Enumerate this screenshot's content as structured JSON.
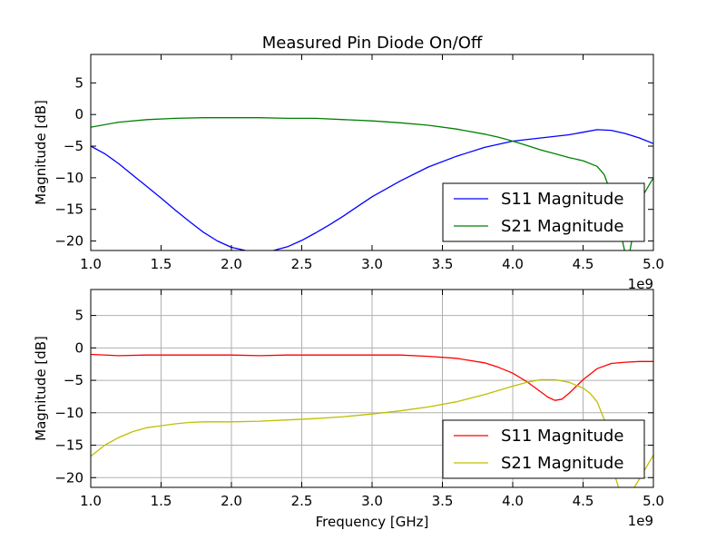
{
  "chart_data": [
    {
      "type": "line",
      "title": "Measured Pin Diode On/Off",
      "xlabel": "",
      "ylabel": "Magnitude [dB]",
      "x_offset_label": "1e9",
      "xlim": [
        1.0,
        5.0
      ],
      "ylim": [
        -21.5,
        9.5
      ],
      "xticks": [
        "1.0",
        "1.5",
        "2.0",
        "2.5",
        "3.0",
        "3.5",
        "4.0",
        "4.5",
        "5.0"
      ],
      "yticks": [
        "5",
        "0",
        "−5",
        "−10",
        "−15",
        "−20"
      ],
      "grid": false,
      "legend_position": "lower right",
      "series": [
        {
          "name": "S11 Magnitude",
          "color": "#0000ff",
          "x": [
            1.0,
            1.1,
            1.2,
            1.3,
            1.4,
            1.5,
            1.6,
            1.7,
            1.8,
            1.9,
            2.0,
            2.1,
            2.2,
            2.3,
            2.4,
            2.5,
            2.6,
            2.7,
            2.8,
            2.9,
            3.0,
            3.2,
            3.4,
            3.6,
            3.8,
            4.0,
            4.2,
            4.4,
            4.5,
            4.6,
            4.7,
            4.8,
            4.9,
            5.0
          ],
          "y": [
            -5.0,
            -6.2,
            -7.8,
            -9.6,
            -11.4,
            -13.2,
            -15.1,
            -16.9,
            -18.6,
            -20.0,
            -21.0,
            -21.5,
            -21.7,
            -21.5,
            -20.9,
            -19.9,
            -18.7,
            -17.4,
            -16.0,
            -14.5,
            -13.0,
            -10.5,
            -8.3,
            -6.6,
            -5.2,
            -4.2,
            -3.7,
            -3.2,
            -2.8,
            -2.4,
            -2.5,
            -3.0,
            -3.7,
            -4.6
          ]
        },
        {
          "name": "S21 Magnitude",
          "color": "#008000",
          "x": [
            1.0,
            1.2,
            1.4,
            1.6,
            1.8,
            2.0,
            2.2,
            2.4,
            2.6,
            2.8,
            3.0,
            3.2,
            3.4,
            3.6,
            3.8,
            3.9,
            4.0,
            4.1,
            4.2,
            4.3,
            4.4,
            4.5,
            4.6,
            4.65,
            4.7,
            4.75,
            4.8,
            4.83,
            4.87,
            4.92,
            5.0
          ],
          "y": [
            -2.0,
            -1.2,
            -0.8,
            -0.6,
            -0.5,
            -0.5,
            -0.5,
            -0.6,
            -0.6,
            -0.8,
            -1.0,
            -1.3,
            -1.7,
            -2.3,
            -3.1,
            -3.6,
            -4.2,
            -4.9,
            -5.6,
            -6.2,
            -6.8,
            -7.3,
            -8.2,
            -9.5,
            -12.5,
            -17.0,
            -22.0,
            -22.0,
            -17.0,
            -13.0,
            -10.0
          ]
        }
      ]
    },
    {
      "type": "line",
      "title": "",
      "xlabel": "Frequency [GHz]",
      "ylabel": "Magnitude [dB]",
      "x_offset_label": "1e9",
      "xlim": [
        1.0,
        5.0
      ],
      "ylim": [
        -21.5,
        9.0
      ],
      "xticks": [
        "1.0",
        "1.5",
        "2.0",
        "2.5",
        "3.0",
        "3.5",
        "4.0",
        "4.5",
        "5.0"
      ],
      "yticks": [
        "5",
        "0",
        "−5",
        "−10",
        "−15",
        "−20"
      ],
      "grid": true,
      "legend_position": "lower right",
      "series": [
        {
          "name": "S11 Magnitude",
          "color": "#ff0000",
          "x": [
            1.0,
            1.2,
            1.4,
            1.6,
            1.8,
            2.0,
            2.2,
            2.4,
            2.6,
            2.8,
            3.0,
            3.2,
            3.4,
            3.6,
            3.8,
            3.9,
            4.0,
            4.1,
            4.2,
            4.25,
            4.3,
            4.35,
            4.4,
            4.5,
            4.6,
            4.7,
            4.8,
            4.9,
            5.0
          ],
          "y": [
            -1.0,
            -1.2,
            -1.1,
            -1.1,
            -1.1,
            -1.1,
            -1.2,
            -1.1,
            -1.1,
            -1.1,
            -1.1,
            -1.1,
            -1.3,
            -1.6,
            -2.3,
            -3.0,
            -3.9,
            -5.2,
            -6.8,
            -7.6,
            -8.1,
            -7.9,
            -7.0,
            -4.9,
            -3.2,
            -2.4,
            -2.2,
            -2.1,
            -2.1
          ]
        },
        {
          "name": "S21 Magnitude",
          "color": "#bfbf00",
          "x": [
            1.0,
            1.1,
            1.2,
            1.3,
            1.4,
            1.5,
            1.6,
            1.7,
            1.8,
            2.0,
            2.2,
            2.4,
            2.6,
            2.8,
            3.0,
            3.2,
            3.4,
            3.6,
            3.8,
            4.0,
            4.1,
            4.2,
            4.3,
            4.4,
            4.5,
            4.55,
            4.6,
            4.65,
            4.7,
            4.73,
            4.76,
            4.85,
            4.92,
            5.0
          ],
          "y": [
            -16.7,
            -15.0,
            -13.8,
            -12.9,
            -12.3,
            -12.0,
            -11.7,
            -11.5,
            -11.4,
            -11.4,
            -11.3,
            -11.1,
            -10.9,
            -10.6,
            -10.2,
            -9.7,
            -9.1,
            -8.3,
            -7.2,
            -5.9,
            -5.3,
            -4.9,
            -4.9,
            -5.3,
            -6.2,
            -7.0,
            -8.3,
            -11.0,
            -16.0,
            -20.0,
            -22.0,
            -22.0,
            -19.5,
            -16.5
          ]
        }
      ]
    }
  ]
}
